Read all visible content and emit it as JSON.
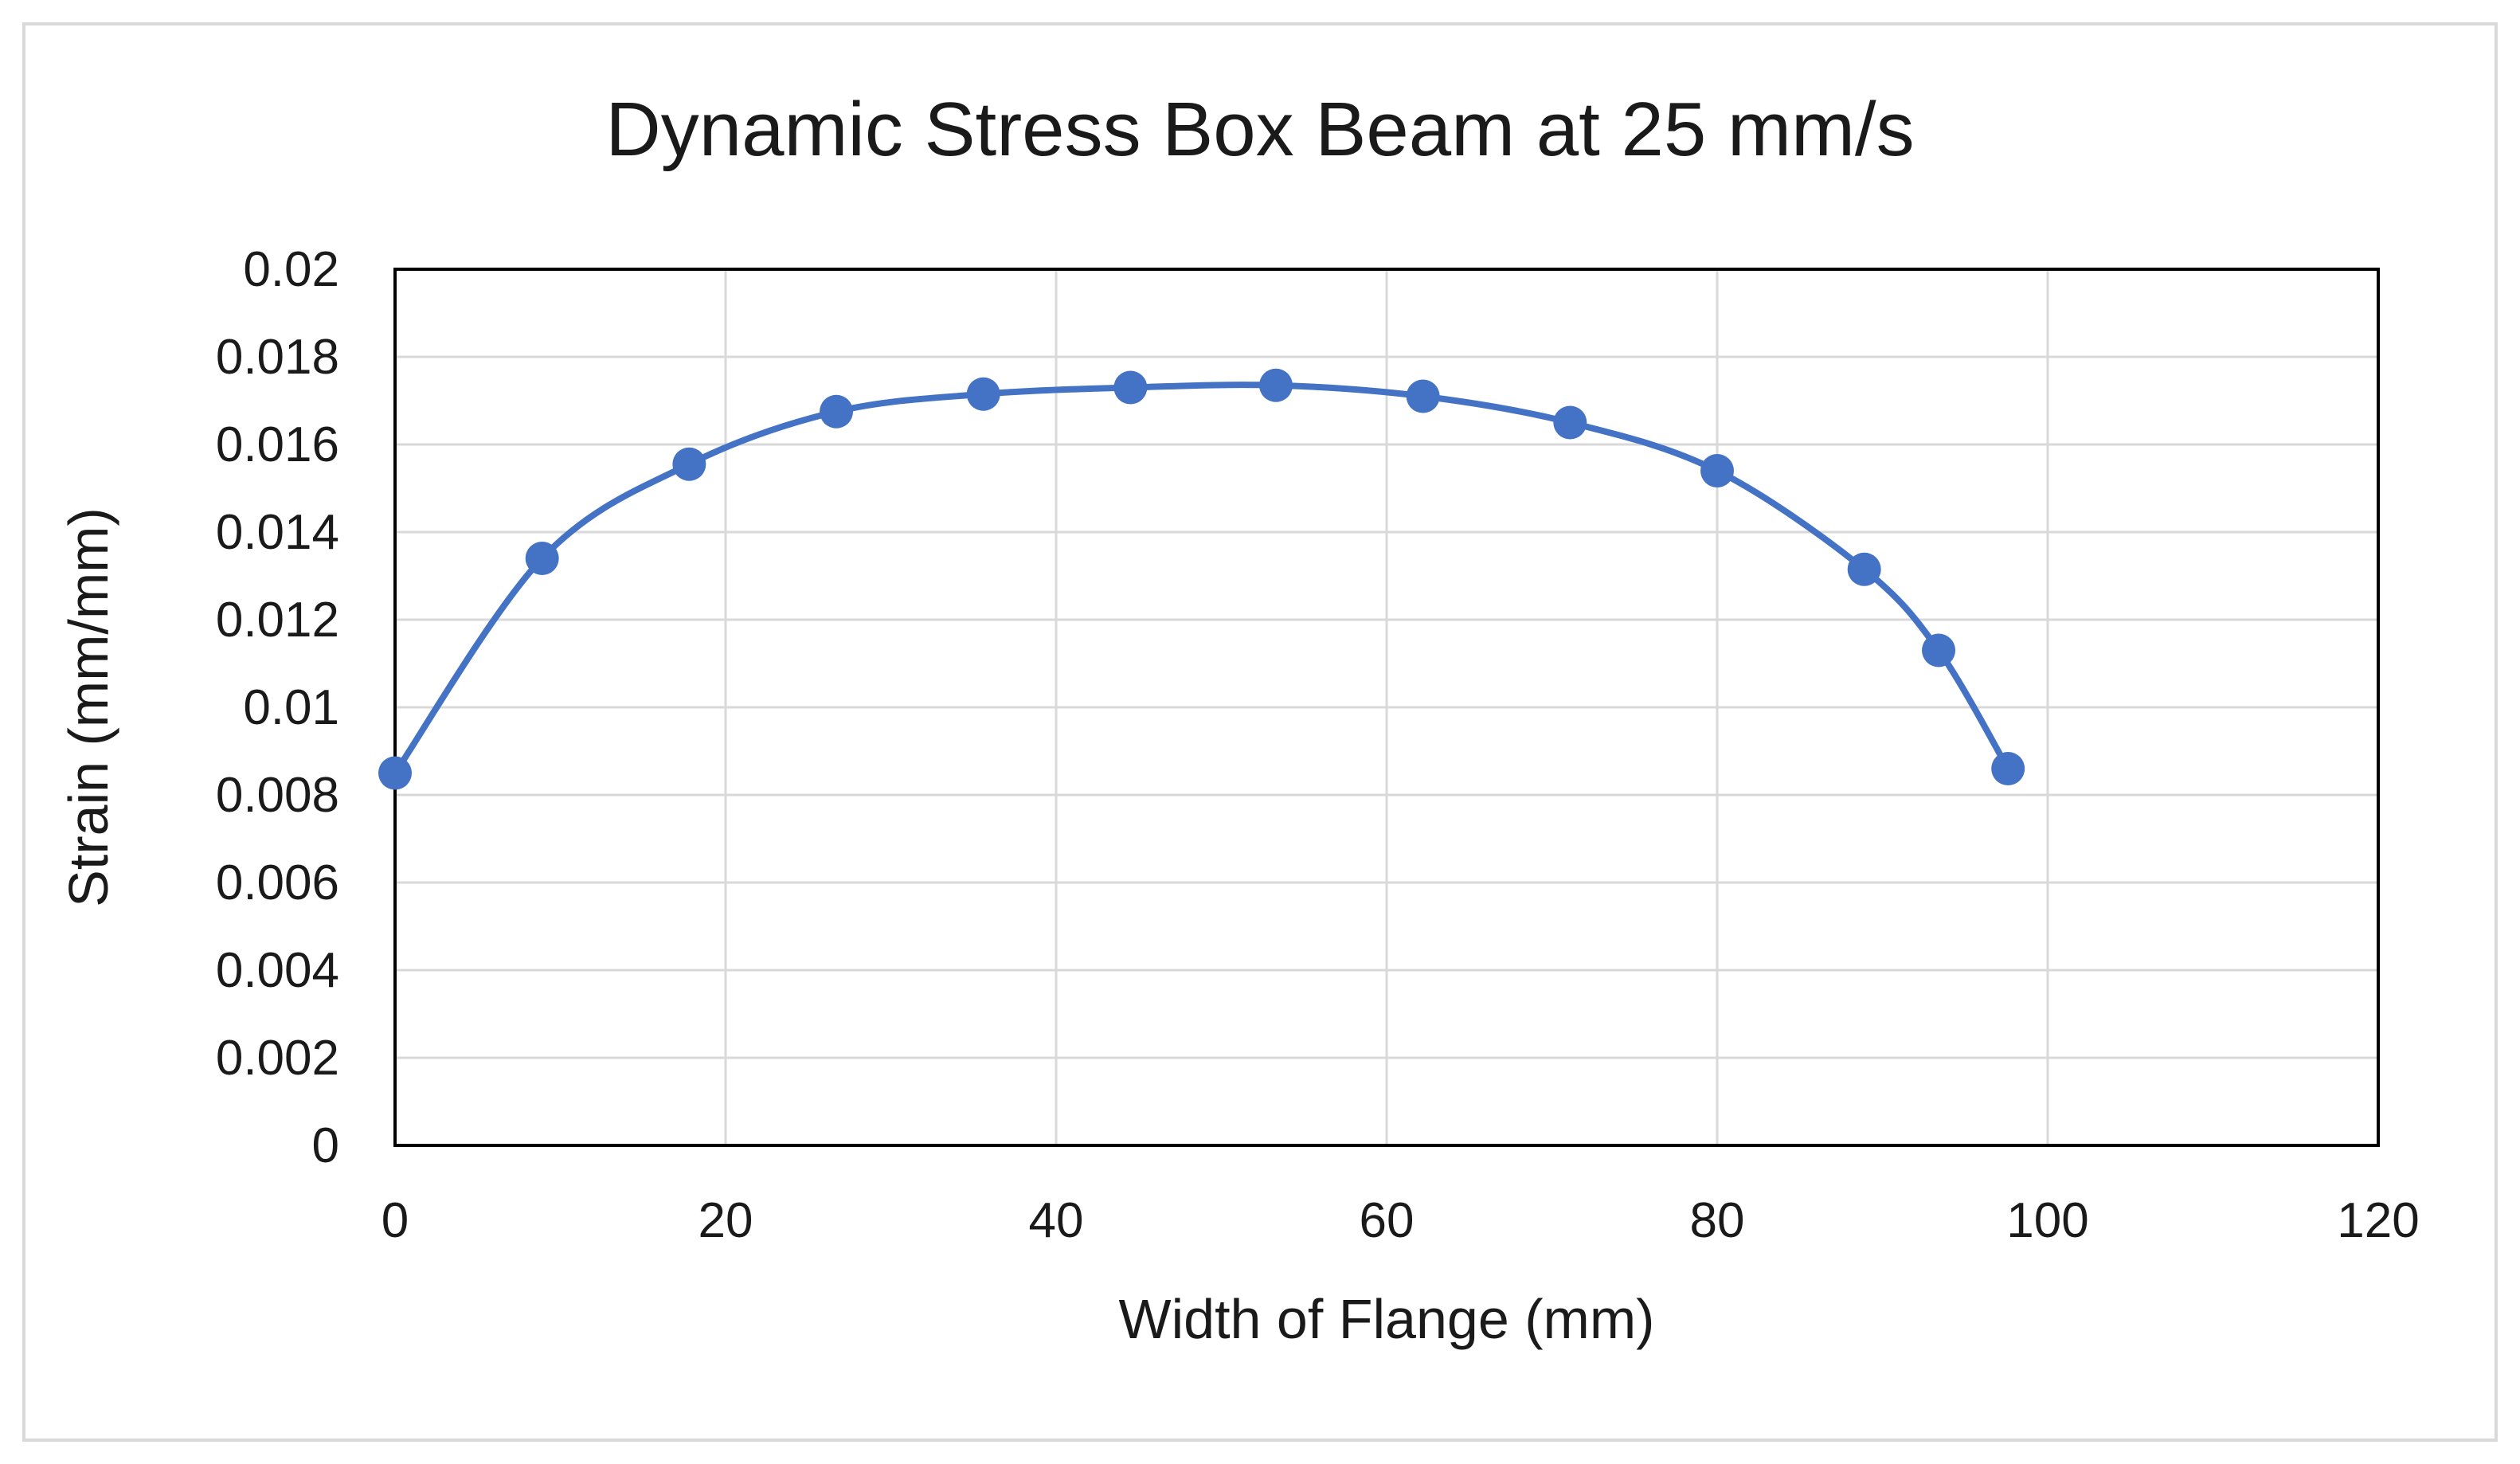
{
  "chart_data": {
    "type": "scatter",
    "title": "Dynamic Stress Box Beam at 25 mm/s",
    "xlabel": "Width of Flange (mm)",
    "ylabel": "Strain (mm/mm)",
    "xlim": [
      0,
      120
    ],
    "ylim": [
      0,
      0.02
    ],
    "x_ticks": [
      "0",
      "20",
      "40",
      "60",
      "80",
      "100",
      "120"
    ],
    "y_ticks": [
      "0",
      "0.002",
      "0.004",
      "0.006",
      "0.008",
      "0.01",
      "0.012",
      "0.014",
      "0.016",
      "0.018",
      "0.02"
    ],
    "grid": true,
    "legend": "none",
    "smooth_line": true,
    "series_color": "#4472C4",
    "grid_color": "#d9d9d9",
    "series": [
      {
        "x": [
          0,
          8.9,
          17.8,
          26.7,
          35.6,
          44.5,
          53.3,
          62.2,
          71.1,
          80.0,
          88.9,
          93.4,
          97.6
        ],
        "y": [
          0.0085,
          0.0134,
          0.01555,
          0.01675,
          0.01715,
          0.0173,
          0.01735,
          0.0171,
          0.0165,
          0.0154,
          0.01315,
          0.0113,
          0.0086
        ]
      }
    ]
  }
}
